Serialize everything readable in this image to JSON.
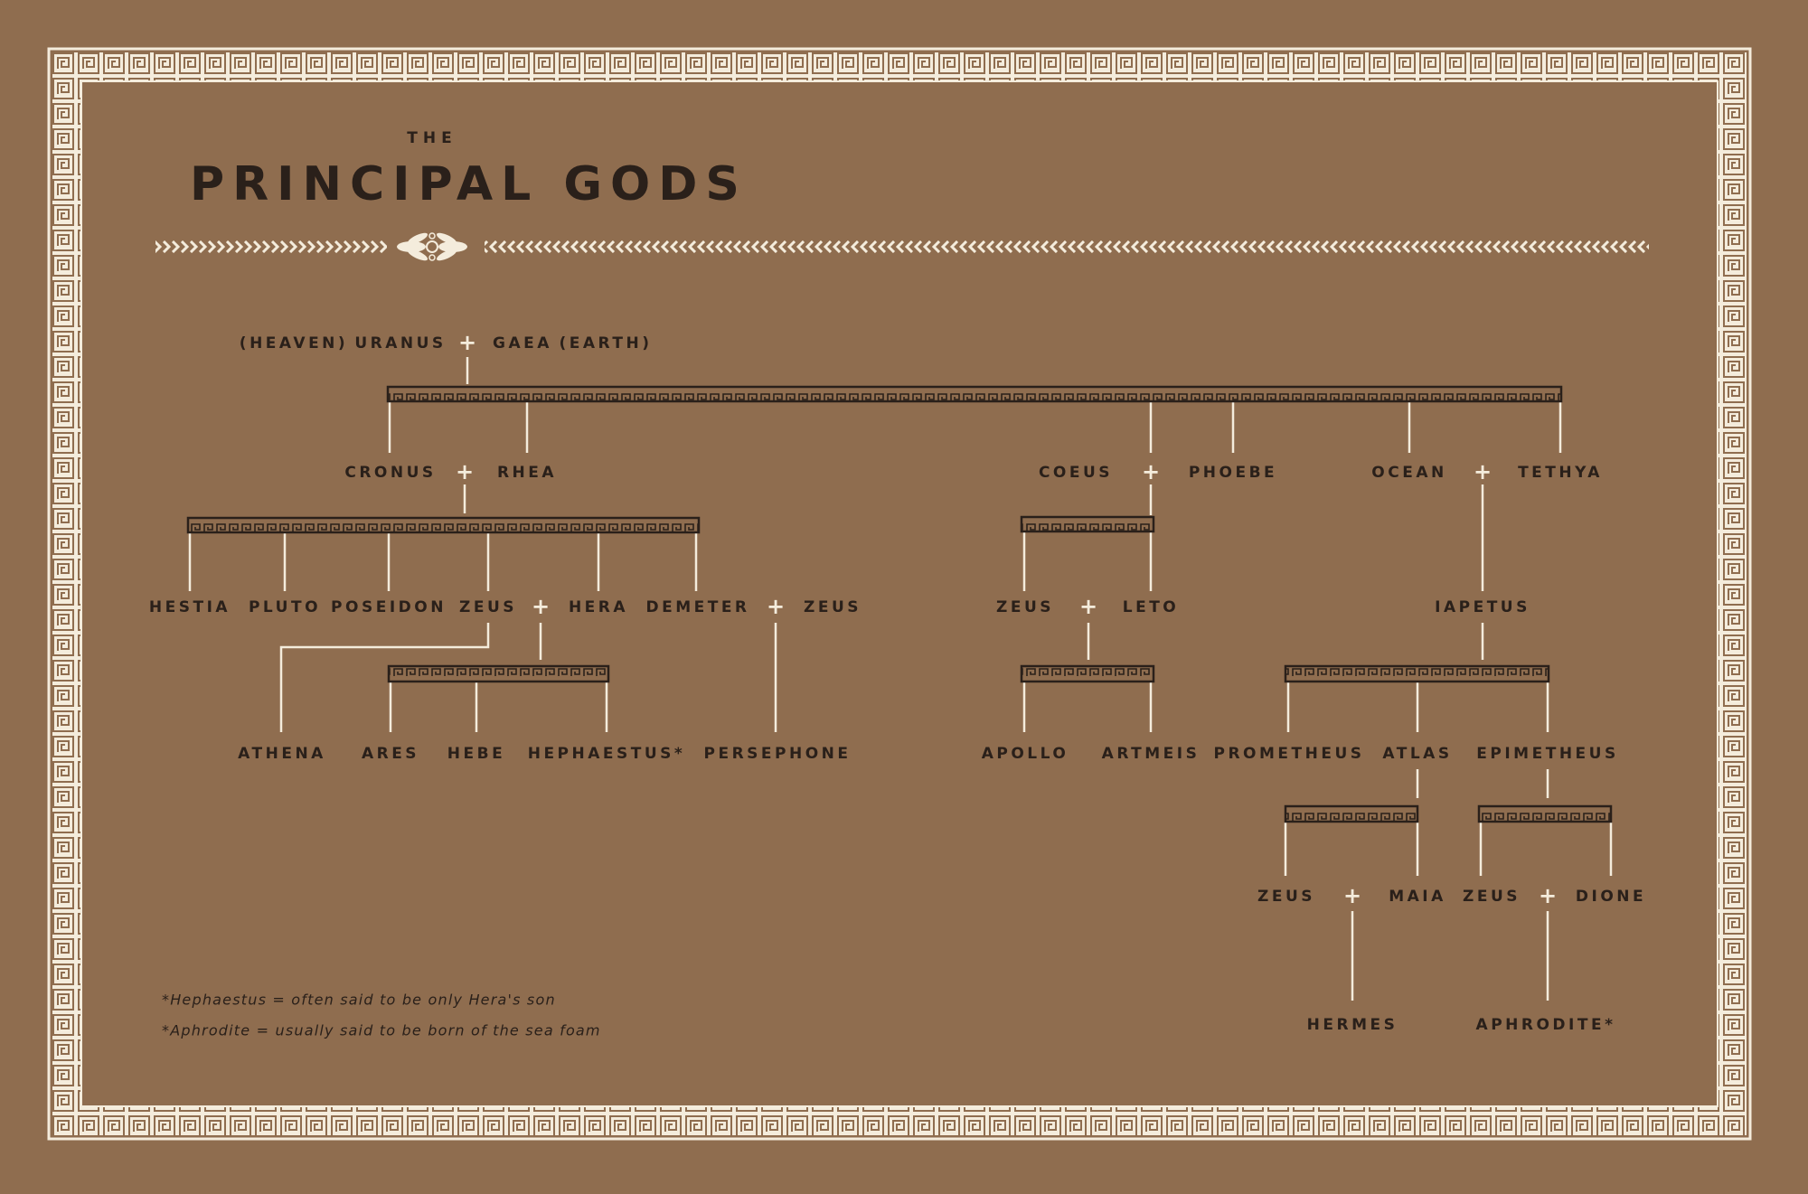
{
  "header": {
    "kicker": "THE",
    "title": "PRINCIPAL GODS"
  },
  "plus": "+",
  "tree": {
    "gen1": {
      "heaven": "(HEAVEN)",
      "uranus": "URANUS",
      "gaea": "GAEA",
      "earth": "(EARTH)"
    },
    "gen2": {
      "cronus": "CRONUS",
      "rhea": "RHEA",
      "coeus": "COEUS",
      "phoebe": "PHOEBE",
      "ocean": "OCEAN",
      "tethya": "TETHYA"
    },
    "gen3": {
      "hestia": "HESTIA",
      "pluto": "PLUTO",
      "poseidon": "POSEIDON",
      "zeus": "ZEUS",
      "hera": "HERA",
      "demeter": "DEMETER",
      "zeus_demeter": "ZEUS",
      "zeus_leto": "ZEUS",
      "leto": "LETO",
      "iapetus": "IAPETUS"
    },
    "gen4": {
      "athena": "ATHENA",
      "ares": "ARES",
      "hebe": "HEBE",
      "hephaestus": "HEPHAESTUS*",
      "persephone": "PERSEPHONE",
      "apollo": "APOLLO",
      "artmeis": "ARTMEIS",
      "prometheus": "PROMETHEUS",
      "atlas": "ATLAS",
      "epimetheus": "EPIMETHEUS"
    },
    "gen5": {
      "zeus_maia": "ZEUS",
      "maia": "MAIA",
      "zeus_dione": "ZEUS",
      "dione": "DIONE"
    },
    "gen6": {
      "hermes": "HERMES",
      "aphrodite": "APHRODITE*"
    }
  },
  "footnotes": [
    "*Hephaestus = often said to be only Hera's son",
    "*Aphrodite = usually said to be born of the sea foam"
  ],
  "colors": {
    "background": "#8f6d4f",
    "ink": "#2a201a",
    "cream": "#f4ecdc"
  }
}
